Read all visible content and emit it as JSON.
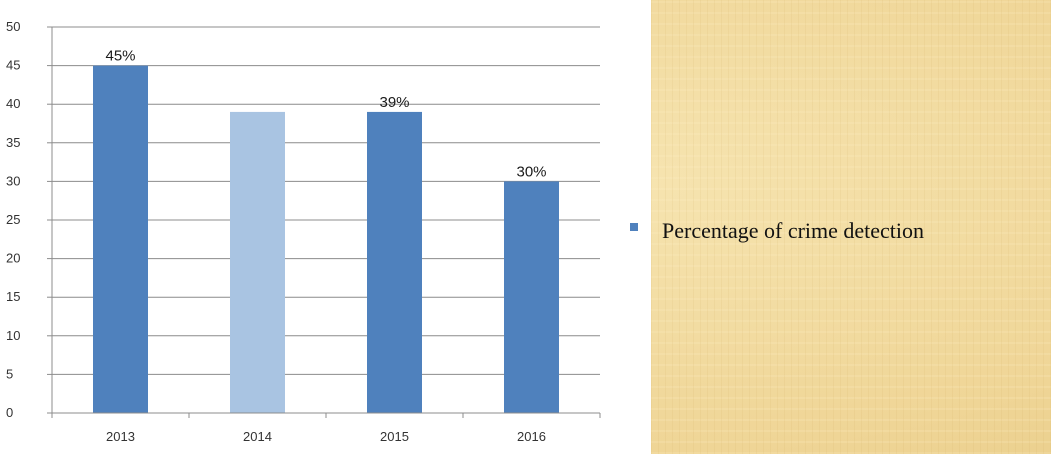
{
  "chart_data": {
    "type": "bar",
    "title": "",
    "xlabel": "",
    "ylabel": "",
    "categories": [
      "2013",
      "2014",
      "2015",
      "2016"
    ],
    "series": [
      {
        "name": "Percentage of crime detection",
        "values": [
          45,
          39,
          39,
          30
        ]
      }
    ],
    "data_labels": [
      "45%",
      "",
      "39%",
      "30%"
    ],
    "ylim": [
      0,
      50
    ],
    "yticks": [
      0,
      5,
      10,
      15,
      20,
      25,
      30,
      35,
      40,
      45,
      50
    ],
    "grid": true,
    "legend_position": "right",
    "colors": {
      "bar": "#4f81bd",
      "bar_highlight": "#a9c4e2",
      "gridline": "#8c8c8c",
      "axis": "#8c8c8c"
    },
    "highlighted_index": 1
  },
  "legend": {
    "label": "Percentage of crime detection",
    "color": "#4f81bd"
  }
}
